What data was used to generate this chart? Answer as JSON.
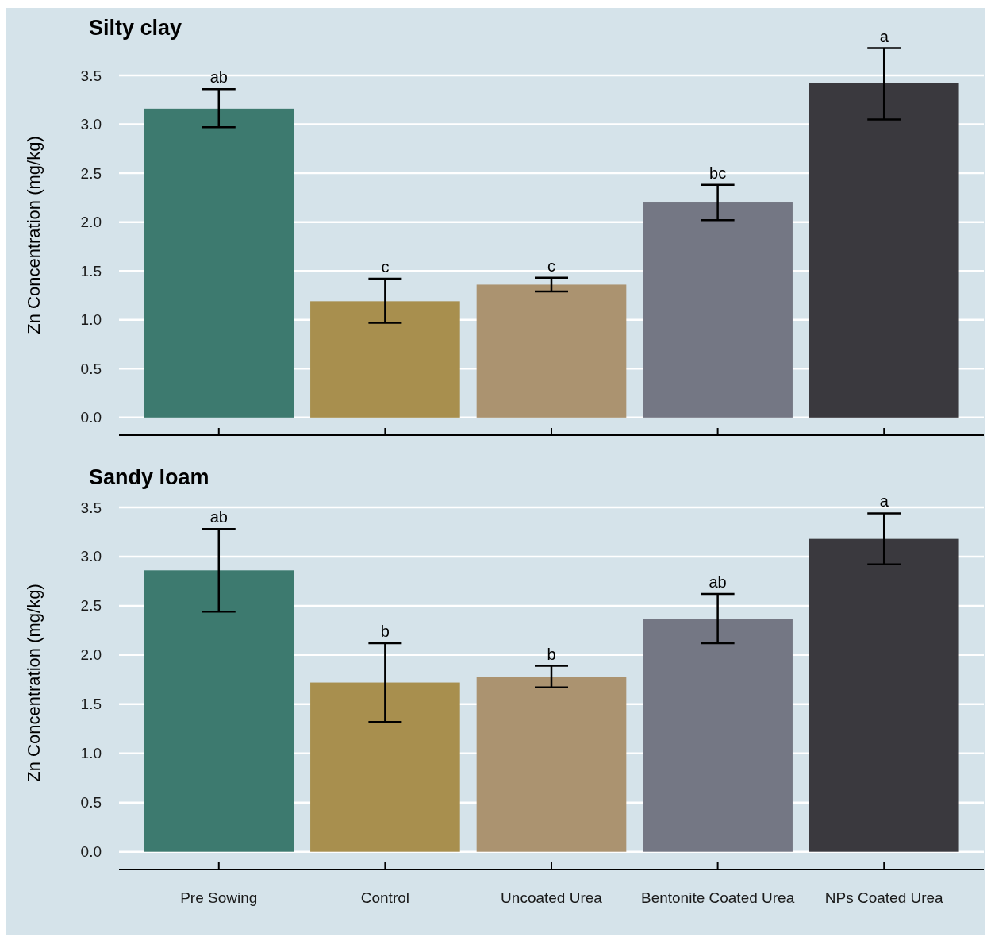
{
  "chart_data": [
    {
      "type": "bar",
      "title": "Silty clay",
      "ylabel": "Zn Concentration (mg/kg)",
      "categories": [
        "Pre Sowing",
        "Control",
        "Uncoated Urea",
        "Bentonite Coated Urea",
        "NPs Coated Urea"
      ],
      "values": [
        3.16,
        1.19,
        1.36,
        2.2,
        3.42
      ],
      "errors": [
        [
          2.97,
          3.36
        ],
        [
          0.97,
          1.42
        ],
        [
          1.29,
          1.43
        ],
        [
          2.02,
          2.38
        ],
        [
          3.05,
          3.78
        ]
      ],
      "colors": [
        "#3d7a6f",
        "#a88f4e",
        "#ab9370",
        "#747784",
        "#3a393e"
      ],
      "ylim": [
        -0.18,
        3.5
      ],
      "yticks": [
        {
          "value": 0,
          "label": "0.0"
        },
        0.5,
        {
          "value": 1,
          "label": "1.0"
        },
        1.5,
        {
          "value": 2,
          "label": "2.0"
        },
        2.5,
        {
          "value": 3,
          "label": "3.0"
        },
        3.5
      ],
      "grid": "y",
      "tick_labels": "y",
      "annotations": [
        {
          "text": "ab",
          "x": "Pre Sowing",
          "y": 3.36
        },
        {
          "text": "c",
          "x": "Control",
          "y": 1.42
        },
        {
          "text": "c",
          "x": "Uncoated Urea",
          "y": 1.43
        },
        {
          "text": "bc",
          "x": "Bentonite Coated Urea",
          "y": 2.38
        },
        {
          "text": "a",
          "x": "NPs Coated Urea",
          "y": 3.78
        }
      ]
    },
    {
      "type": "bar",
      "title": "Sandy loam",
      "ylabel": "Zn Concentration (mg/kg)",
      "categories": [
        "Pre Sowing",
        "Control",
        "Uncoated Urea",
        "Bentonite Coated Urea",
        "NPs Coated Urea"
      ],
      "values": [
        2.86,
        1.72,
        1.78,
        2.37,
        3.18
      ],
      "errors": [
        [
          2.44,
          3.28
        ],
        [
          1.32,
          2.12
        ],
        [
          1.67,
          1.89
        ],
        [
          2.12,
          2.62
        ],
        [
          2.92,
          3.44
        ]
      ],
      "colors": [
        "#3d7a6f",
        "#a88f4e",
        "#ab9370",
        "#747784",
        "#3a393e"
      ],
      "ylim": [
        -0.18,
        3.5
      ],
      "yticks": [
        {
          "value": 0,
          "label": "0.0"
        },
        0.5,
        {
          "value": 1,
          "label": "1.0"
        },
        1.5,
        {
          "value": 2,
          "label": "2.0"
        },
        2.5,
        {
          "value": 3,
          "label": "3.0"
        },
        3.5
      ],
      "grid": "y",
      "annotations": [
        {
          "text": "ab",
          "x": "Pre Sowing",
          "y": 3.28
        },
        {
          "text": "b",
          "x": "Control",
          "y": 2.12
        },
        {
          "text": "b",
          "x": "Uncoated Urea",
          "y": 1.89
        },
        {
          "text": "ab",
          "x": "Bentonite Coated Urea",
          "y": 2.62
        },
        {
          "text": "a",
          "x": "NPs Coated Urea",
          "y": 3.44
        }
      ]
    }
  ]
}
